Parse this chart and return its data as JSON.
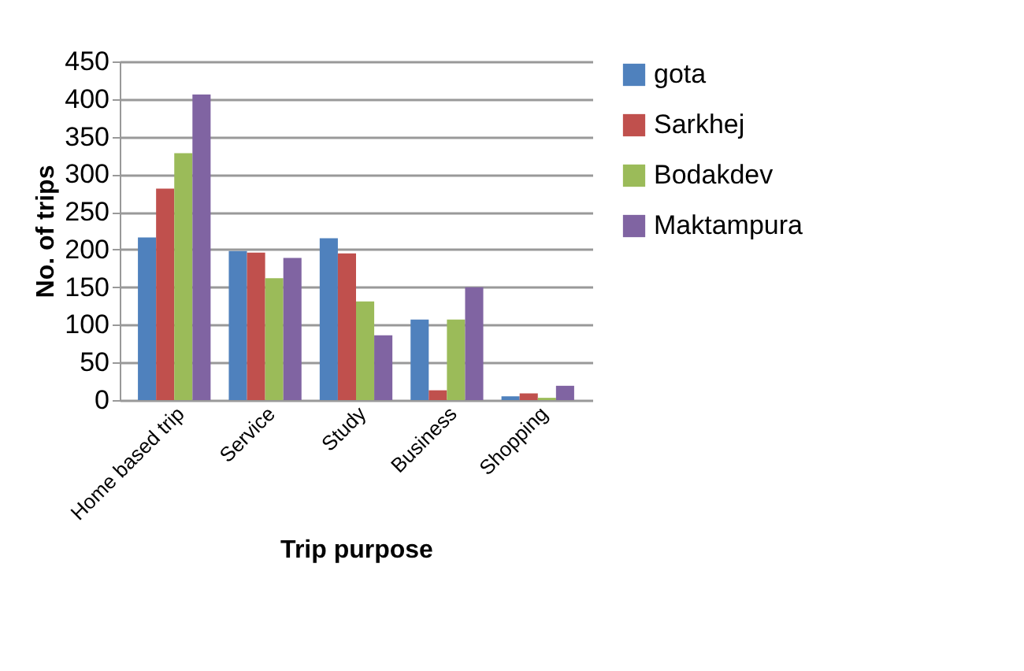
{
  "chart_data": {
    "type": "bar",
    "xlabel": "Trip purpose",
    "ylabel": "No. of trips",
    "categories": [
      "Home based trip",
      "Service",
      "Study",
      "Business",
      "Shopping"
    ],
    "series": [
      {
        "name": "gota",
        "color": "#4f81bd",
        "values": [
          216,
          198,
          215,
          107,
          5
        ]
      },
      {
        "name": "Sarkhej",
        "color": "#c0504d",
        "values": [
          281,
          196,
          195,
          13,
          9
        ]
      },
      {
        "name": "Bodakdev",
        "color": "#9bbb59",
        "values": [
          328,
          162,
          131,
          107,
          3
        ]
      },
      {
        "name": "Maktampura",
        "color": "#8064a2",
        "values": [
          406,
          189,
          86,
          150,
          19
        ]
      }
    ],
    "ylim": [
      0,
      450
    ],
    "yticks": [
      0,
      50,
      100,
      150,
      200,
      250,
      300,
      350,
      400,
      450
    ],
    "grid": "y",
    "legend": "right"
  }
}
